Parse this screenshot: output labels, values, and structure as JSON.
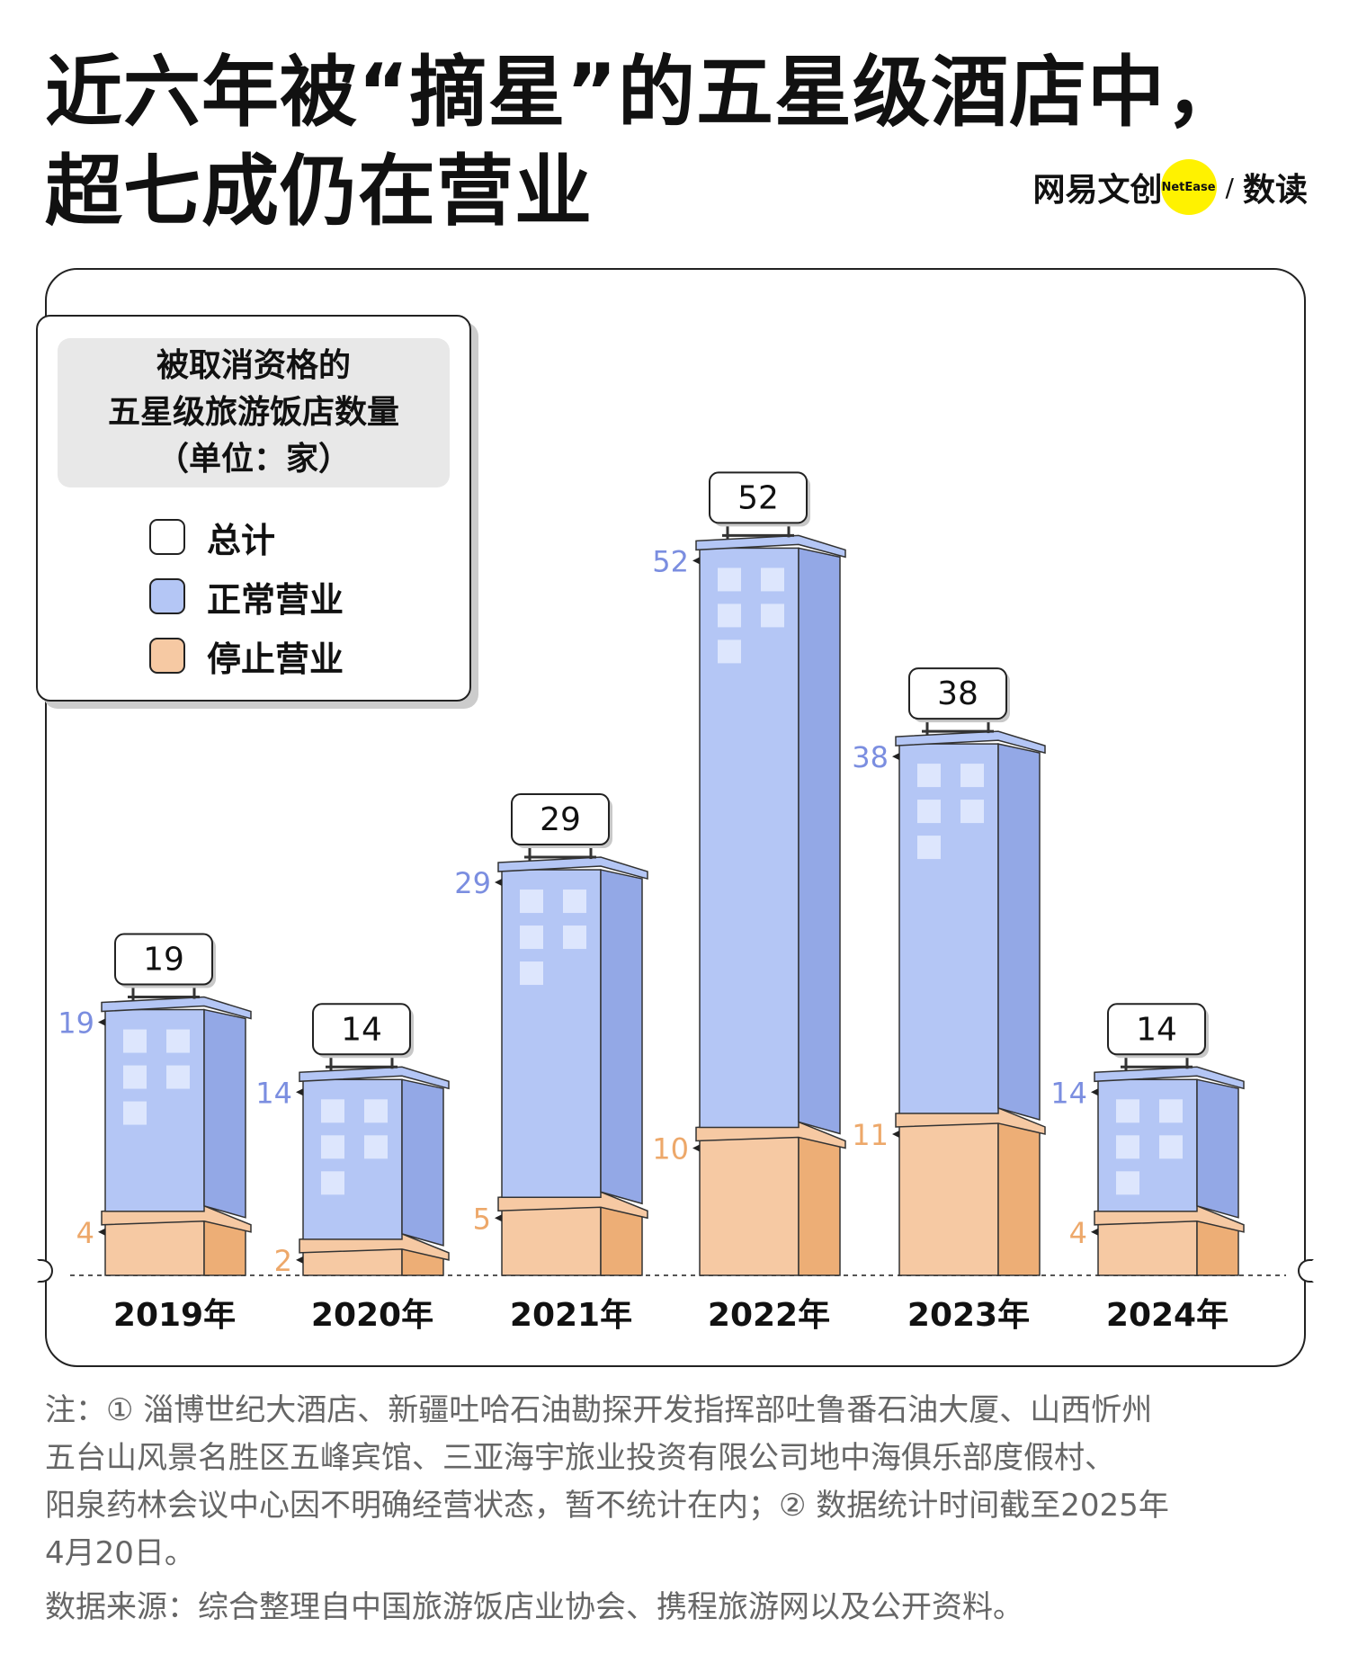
{
  "title": {
    "line1": "近六年被“摘星”的五星级酒店中，",
    "line2": "超七成仍在营业"
  },
  "brand": {
    "name": "网易文创",
    "badge": "NetEase",
    "slash": "/",
    "sub": "数读"
  },
  "legend": {
    "title_lines": [
      "被取消资格的",
      "五星级旅游饭店数量",
      "（单位：家）"
    ],
    "items": [
      {
        "label": "总计",
        "color": "#ffffff"
      },
      {
        "label": "正常营业",
        "color": "#b4c6f5"
      },
      {
        "label": "停止营业",
        "color": "#f6c9a3"
      }
    ]
  },
  "chart_data": {
    "type": "bar",
    "stacked": true,
    "categories": [
      "2019年",
      "2020年",
      "2021年",
      "2022年",
      "2023年",
      "2024年"
    ],
    "series": [
      {
        "name": "停止营业",
        "values": [
          4,
          2,
          5,
          10,
          11,
          4
        ],
        "color": "#f6c9a3"
      },
      {
        "name": "正常营业",
        "values": [
          15,
          12,
          24,
          42,
          27,
          10
        ],
        "color": "#b4c6f5"
      }
    ],
    "totals": [
      19,
      14,
      29,
      52,
      38,
      14
    ],
    "total_label": "总计",
    "colors": {
      "operating_front": "#b4c6f5",
      "operating_side": "#93a8e6",
      "stopped_front": "#f6c9a3",
      "stopped_side": "#edae76",
      "operating_label": "#7b8ee0",
      "stopped_label": "#eda86a",
      "window": "#dde6fd"
    }
  },
  "notes": {
    "lines": [
      "注：① 淄博世纪大酒店、新疆吐哈石油勘探开发指挥部吐鲁番石油大厦、山西忻州",
      "五台山风景名胜区五峰宾馆、三亚海宇旅业投资有限公司地中海俱乐部度假村、",
      "阳泉药林会议中心因不明确经营状态，暂不统计在内；② 数据统计时间截至2025年",
      "4月20日。"
    ],
    "source": "数据来源：综合整理自中国旅游饭店业协会、携程旅游网以及公开资料。"
  }
}
